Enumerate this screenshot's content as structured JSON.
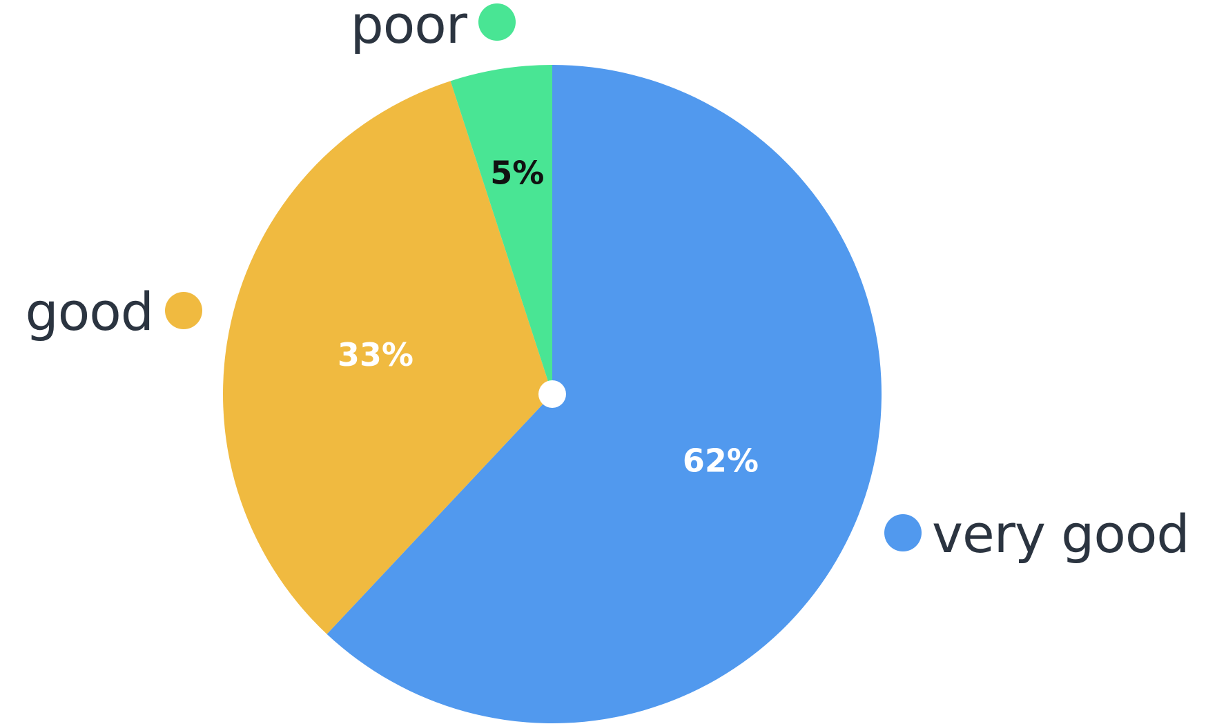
{
  "chart_data": {
    "type": "pie",
    "title": "",
    "slices": [
      {
        "label": "very good",
        "value": 62,
        "display": "62%",
        "color": "#5199ee",
        "label_color": "#ffffff"
      },
      {
        "label": "good",
        "value": 33,
        "display": "33%",
        "color": "#f0ba40",
        "label_color": "#ffffff"
      },
      {
        "label": "poor",
        "value": 5,
        "display": "5%",
        "color": "#49e594",
        "label_color": "#111111"
      }
    ],
    "start": "12 o'clock",
    "direction": "clockwise",
    "center_marker": "white dot",
    "legend": "labels with colored dots placed beside each slice"
  }
}
